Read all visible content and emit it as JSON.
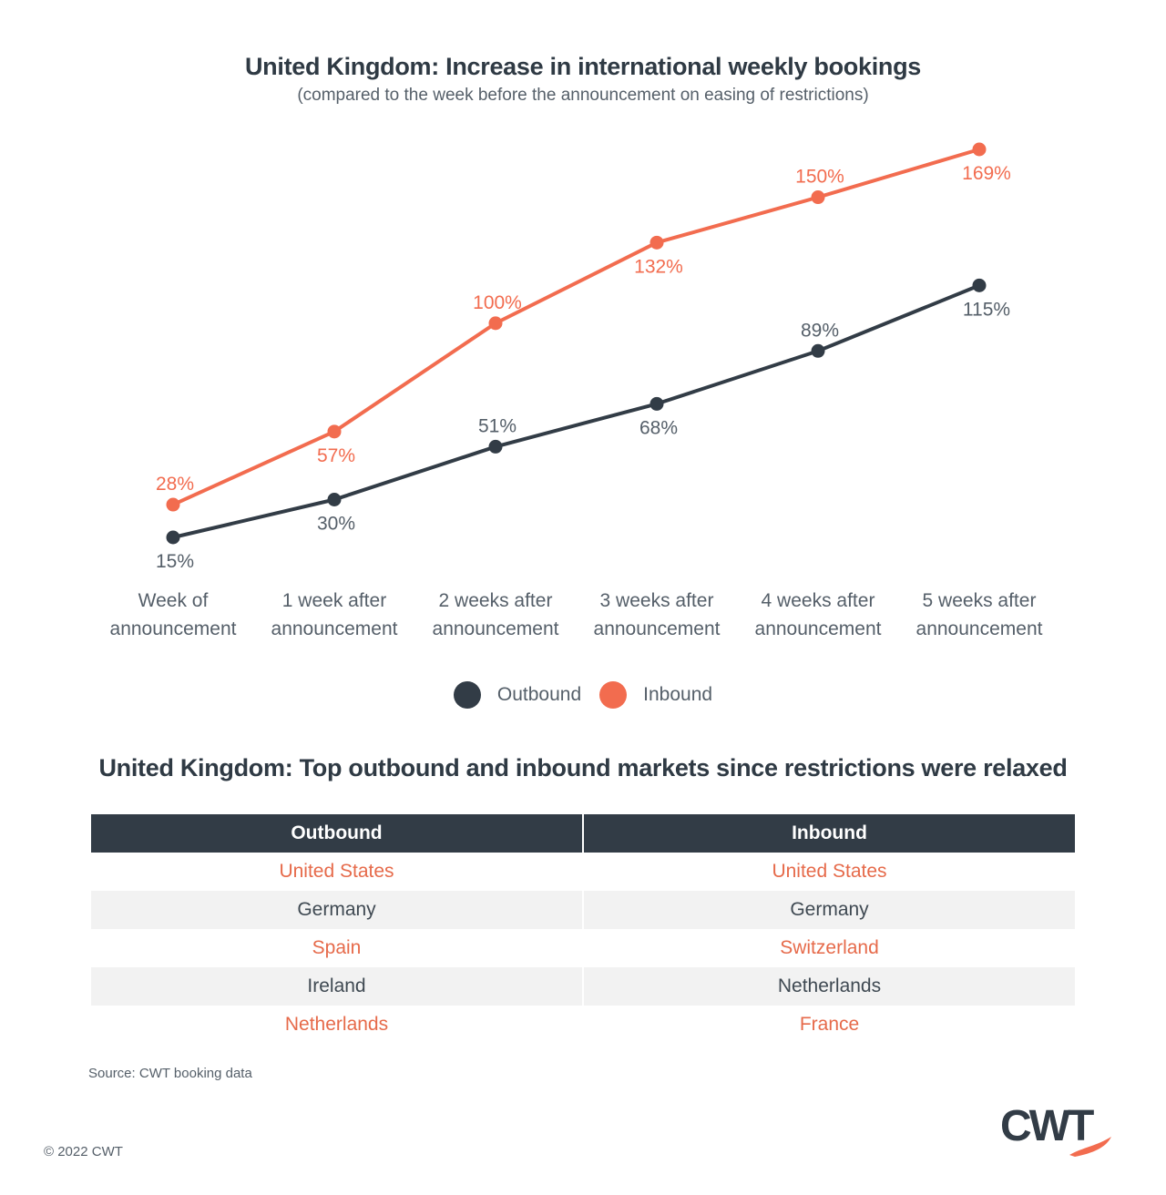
{
  "title": "United Kingdom: Increase in international weekly bookings",
  "subtitle": "(compared to the week before the announcement on easing of restrictions)",
  "colors": {
    "outbound": "#323c46",
    "inbound": "#f26c4f"
  },
  "chart_data": {
    "type": "line",
    "categories": [
      [
        "Week of",
        "announcement"
      ],
      [
        "1 week after",
        "announcement"
      ],
      [
        "2 weeks after",
        "announcement"
      ],
      [
        "3 weeks after",
        "announcement"
      ],
      [
        "4 weeks after",
        "announcement"
      ],
      [
        "5 weeks after",
        "announcement"
      ]
    ],
    "series": [
      {
        "name": "Outbound",
        "values": [
          15,
          30,
          51,
          68,
          89,
          115
        ],
        "labels": [
          "15%",
          "30%",
          "51%",
          "68%",
          "89%",
          "115%"
        ]
      },
      {
        "name": "Inbound",
        "values": [
          28,
          57,
          100,
          132,
          150,
          169
        ],
        "labels": [
          "28%",
          "57%",
          "100%",
          "132%",
          "150%",
          "169%"
        ]
      }
    ],
    "legend_position": "bottom-center",
    "grid": false,
    "y_axis_visible": false
  },
  "legend": [
    {
      "label": "Outbound"
    },
    {
      "label": "Inbound"
    }
  ],
  "table": {
    "title": "United Kingdom: Top outbound and inbound markets since restrictions were relaxed",
    "headers": [
      "Outbound",
      "Inbound"
    ],
    "rows": [
      [
        "United States",
        "United States"
      ],
      [
        "Germany",
        "Germany"
      ],
      [
        "Spain",
        "Switzerland"
      ],
      [
        "Ireland",
        "Netherlands"
      ],
      [
        "Netherlands",
        "France"
      ]
    ]
  },
  "source": "Source: CWT booking data",
  "copyright": "© 2022 CWT",
  "logo": {
    "text": "CWT"
  }
}
